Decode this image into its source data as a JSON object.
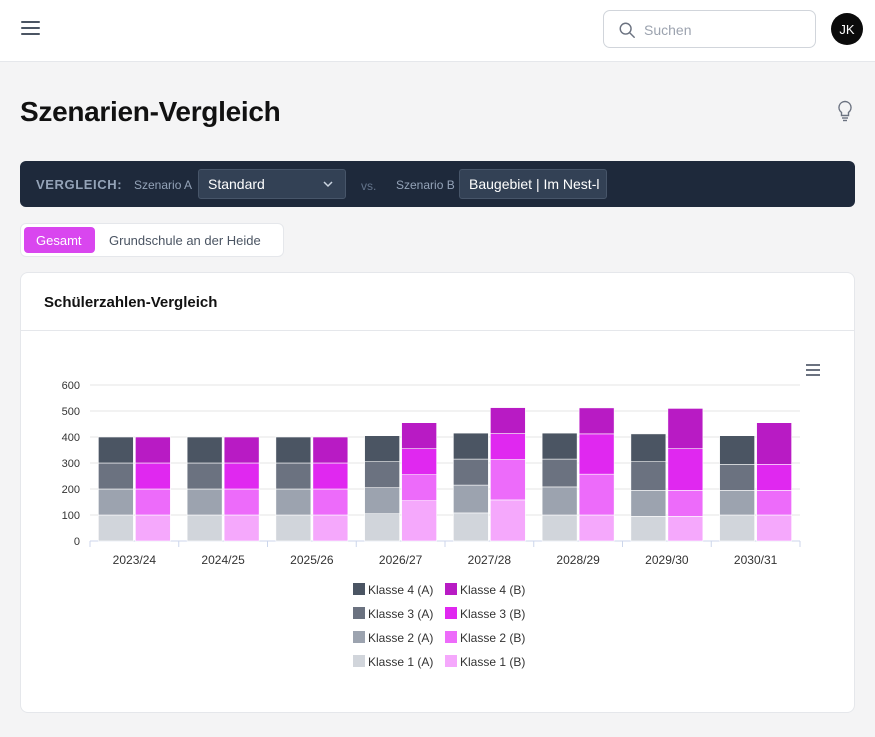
{
  "header": {
    "search_placeholder": "Suchen",
    "avatar_initials": "JK"
  },
  "page": {
    "title": "Szenarien-Vergleich"
  },
  "comparison": {
    "label": "VERGLEICH:",
    "scenario_a_label": "Szenario A",
    "scenario_a_value": "Standard",
    "vs_label": "vs.",
    "scenario_b_label": "Szenario B",
    "scenario_b_value": "Baugebiet | Im Nest-l"
  },
  "tabs": [
    {
      "label": "Gesamt",
      "active": true
    },
    {
      "label": "Grundschule an der Heide",
      "active": false
    }
  ],
  "card": {
    "title": "Schülerzahlen-Vergleich"
  },
  "colors": {
    "accent": "#d946ef",
    "dark_bar": "#1e293b",
    "a_k1": "#d1d5db",
    "a_k2": "#9ca3af",
    "a_k3": "#6b7280",
    "a_k4": "#4b5563",
    "b_k1": "#f5a8fc",
    "b_k2": "#ed6bfa",
    "b_k3": "#e028f0",
    "b_k4": "#b81bc4"
  },
  "chart_data": {
    "type": "bar",
    "stacked": true,
    "categories": [
      "2023/24",
      "2024/25",
      "2025/26",
      "2026/27",
      "2027/28",
      "2028/29",
      "2029/30",
      "2030/31"
    ],
    "ylim": [
      0,
      600
    ],
    "yticks": [
      0,
      100,
      200,
      300,
      400,
      500,
      600
    ],
    "grid": true,
    "legend_position": "bottom",
    "series": [
      {
        "name": "Klasse 1 (A)",
        "stack": "A",
        "color": "#d1d5db",
        "values": [
          100,
          100,
          100,
          105,
          108,
          100,
          95,
          100
        ]
      },
      {
        "name": "Klasse 2 (A)",
        "stack": "A",
        "color": "#9ca3af",
        "values": [
          100,
          100,
          100,
          100,
          107,
          108,
          100,
          95
        ]
      },
      {
        "name": "Klasse 3 (A)",
        "stack": "A",
        "color": "#6b7280",
        "values": [
          100,
          100,
          100,
          100,
          100,
          107,
          110,
          100
        ]
      },
      {
        "name": "Klasse 4 (A)",
        "stack": "A",
        "color": "#4b5563",
        "values": [
          100,
          100,
          100,
          100,
          100,
          100,
          107,
          110
        ]
      },
      {
        "name": "Klasse 1 (B)",
        "stack": "B",
        "color": "#f5a8fc",
        "values": [
          100,
          100,
          100,
          155,
          158,
          100,
          95,
          100
        ]
      },
      {
        "name": "Klasse 2 (B)",
        "stack": "B",
        "color": "#ed6bfa",
        "values": [
          100,
          100,
          100,
          100,
          155,
          157,
          100,
          95
        ]
      },
      {
        "name": "Klasse 3 (B)",
        "stack": "B",
        "color": "#e028f0",
        "values": [
          100,
          100,
          100,
          100,
          100,
          155,
          160,
          100
        ]
      },
      {
        "name": "Klasse 4 (B)",
        "stack": "B",
        "color": "#b81bc4",
        "values": [
          100,
          100,
          100,
          100,
          100,
          100,
          155,
          160
        ]
      }
    ],
    "legend": [
      [
        "Klasse 4 (A)",
        "Klasse 4 (B)"
      ],
      [
        "Klasse 3 (A)",
        "Klasse 3 (B)"
      ],
      [
        "Klasse 2 (A)",
        "Klasse 2 (B)"
      ],
      [
        "Klasse 1 (A)",
        "Klasse 1 (B)"
      ]
    ]
  }
}
